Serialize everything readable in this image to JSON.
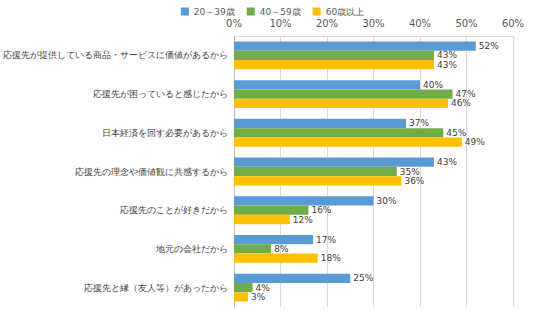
{
  "chart_data": {
    "type": "bar",
    "orientation": "horizontal",
    "categories": [
      "応援先が提供している商品・サービスに価値があるから",
      "応援先が困っていると感じたから",
      "日本経済を回す必要があるから",
      "応援先の理念や価値観に共感するから",
      "応援先のことが好きだから",
      "地元の会社だから",
      "応援先と縁（友人等）があったから"
    ],
    "series": [
      {
        "name": "20～39歳",
        "color": "#5b9bd5",
        "values": [
          52,
          40,
          37,
          43,
          30,
          17,
          25
        ],
        "value_labels": [
          "52%",
          "40%",
          "37%",
          "43%",
          "30%",
          "17%",
          "25%"
        ]
      },
      {
        "name": "40～59歳",
        "color": "#70ad47",
        "values": [
          43,
          47,
          45,
          35,
          16,
          8,
          4
        ],
        "value_labels": [
          "43%",
          "47%",
          "45%",
          "35%",
          "16%",
          "8%",
          "4%"
        ]
      },
      {
        "name": "60歳以上",
        "color": "#ffc000",
        "values": [
          43,
          46,
          49,
          36,
          12,
          18,
          3
        ],
        "value_labels": [
          "43%",
          "46%",
          "49%",
          "36%",
          "12%",
          "18%",
          "3%"
        ]
      }
    ],
    "xlim": [
      0,
      60
    ],
    "xticks": [
      {
        "value": 0,
        "label": "0%"
      },
      {
        "value": 10,
        "label": "10%"
      },
      {
        "value": 20,
        "label": "20%"
      },
      {
        "value": 30,
        "label": "30%"
      },
      {
        "value": 40,
        "label": "40%"
      },
      {
        "value": 50,
        "label": "50%"
      },
      {
        "value": 60,
        "label": "60%"
      }
    ],
    "grid": true,
    "legend": "top",
    "data_labels": true
  }
}
